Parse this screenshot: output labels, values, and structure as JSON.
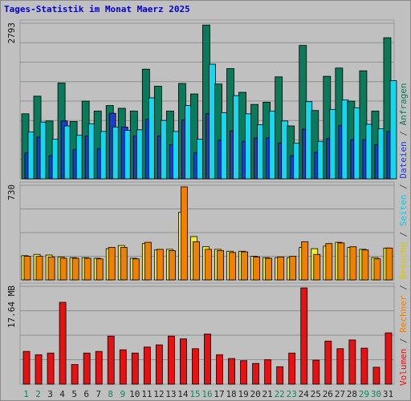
{
  "chart_data": {
    "type": "bar",
    "title": "Tages-Statistik im Monat Maerz 2025",
    "categories": [
      "1",
      "2",
      "3",
      "4",
      "5",
      "6",
      "7",
      "8",
      "9",
      "10",
      "11",
      "12",
      "13",
      "14",
      "15",
      "16",
      "17",
      "18",
      "19",
      "20",
      "21",
      "22",
      "23",
      "24",
      "25",
      "26",
      "27",
      "28",
      "29",
      "30",
      "31"
    ],
    "weekend_days": [
      "1",
      "2",
      "8",
      "9",
      "15",
      "16",
      "22",
      "23",
      "29",
      "30"
    ],
    "panels": [
      {
        "id": "top",
        "ymax_label": "2793",
        "ymax": 2793,
        "series": [
          {
            "name": "Anfragen",
            "color": "#0a7a5a",
            "values": [
              1180,
              1500,
              1050,
              1740,
              1040,
              1410,
              1230,
              1330,
              1280,
              1230,
              1990,
              1680,
              1230,
              1730,
              1540,
              2790,
              1720,
              2000,
              1570,
              1350,
              1390,
              1850,
              960,
              2420,
              1240,
              1860,
              2010,
              1410,
              1960,
              1230,
              2560
            ]
          },
          {
            "name": "Dateien",
            "color": "#1b3ccf",
            "values": [
              470,
              760,
              420,
              1050,
              530,
              780,
              550,
              1190,
              940,
              780,
              1080,
              780,
              620,
              1070,
              470,
              1180,
              700,
              870,
              680,
              740,
              740,
              650,
              420,
              900,
              480,
              730,
              970,
              710,
              710,
              620,
              860
            ]
          },
          {
            "name": "Seiten",
            "color": "#12d8f0",
            "values": [
              850,
              1030,
              720,
              960,
              790,
              1000,
              860,
              940,
              880,
              890,
              1470,
              1060,
              860,
              1330,
              720,
              2080,
              1200,
              1510,
              1180,
              980,
              1230,
              1050,
              650,
              1400,
              680,
              1260,
              1430,
              1290,
              990,
              910,
              1780
            ]
          }
        ]
      },
      {
        "id": "mid",
        "ymax_label": "730",
        "ymax": 730,
        "series": [
          {
            "name": "Besuche",
            "color": "#f0f030",
            "values": [
              190,
              200,
              195,
              180,
              175,
              175,
              170,
              245,
              270,
              170,
              285,
              235,
              240,
              530,
              340,
              260,
              240,
              225,
              225,
              185,
              175,
              175,
              175,
              255,
              245,
              265,
              295,
              255,
              240,
              175,
              250
            ]
          },
          {
            "name": "Rechner",
            "color": "#f08000",
            "values": [
              185,
              185,
              180,
              170,
              170,
              170,
              165,
              255,
              255,
              165,
              295,
              240,
              230,
              730,
              300,
              240,
              230,
              215,
              220,
              180,
              170,
              180,
              185,
              300,
              200,
              285,
              290,
              260,
              235,
              165,
              250
            ]
          }
        ]
      },
      {
        "id": "bot",
        "ymax_label": "17.64 MB",
        "ymax": 17.64,
        "series": [
          {
            "name": "Volumen",
            "color": "#e81010",
            "values": [
              6.0,
              5.4,
              5.7,
              15.0,
              3.6,
              5.7,
              6.0,
              8.8,
              6.3,
              5.7,
              6.8,
              7.2,
              8.8,
              8.3,
              6.5,
              9.2,
              5.4,
              4.7,
              4.3,
              3.8,
              4.5,
              3.2,
              5.7,
              17.64,
              4.4,
              7.9,
              6.5,
              8.1,
              6.6,
              3.1,
              9.4
            ]
          }
        ]
      }
    ],
    "right_label": {
      "parts": [
        {
          "text": "Volumen",
          "color": "#e81010"
        },
        {
          "text": " / ",
          "color": "#555555"
        },
        {
          "text": "Rechner",
          "color": "#f08000"
        },
        {
          "text": " / ",
          "color": "#555555"
        },
        {
          "text": "Besuche",
          "color": "#d8c800"
        },
        {
          "text": " / ",
          "color": "#555555"
        },
        {
          "text": "Seiten",
          "color": "#12c8e0"
        },
        {
          "text": " / ",
          "color": "#555555"
        },
        {
          "text": "Dateien",
          "color": "#1b3ccf"
        },
        {
          "text": " / ",
          "color": "#555555"
        },
        {
          "text": "Anfragen",
          "color": "#0a7a5a"
        }
      ]
    },
    "colors": {
      "title": "#0000d0",
      "weekend_label": "#0a8a5a",
      "weekday_label": "#222222",
      "grid": "#8f8f8f",
      "plot_bg": "#c0c0c0"
    }
  }
}
